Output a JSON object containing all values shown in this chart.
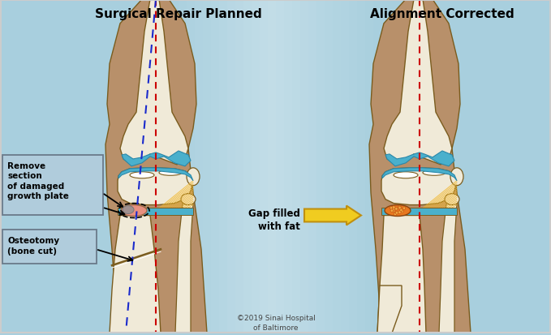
{
  "title_left": "Surgical Repair Planned",
  "title_right": "Alignment Corrected",
  "copyright": "©2019 Sinai Hospital\nof Baltimore",
  "label1_line1": "Remove",
  "label1_line2": "section",
  "label1_line3": "of damaged",
  "label1_line4": "growth plate",
  "label2_line1": "Osteotomy",
  "label2_line2": "(bone cut)",
  "label3": "Gap filled\nwith fat",
  "bg_left": "#a8cfde",
  "bg_right": "#b0d5e2",
  "bg_center": "#d0e8f0",
  "bone_color": "#f0ead8",
  "bone_outline": "#7a5c1e",
  "skin_color": "#b8906a",
  "skin_outline": "#7a5c1e",
  "cartilage_color": "#4ab0cc",
  "cartilage_outline": "#2a88aa",
  "damaged_pink": "#e89080",
  "damaged_gray": "#a09090",
  "fat_orange": "#e87820",
  "fat_light": "#f0a840",
  "tendon_color": "#f0b830",
  "label_bg": "#b0ccdc",
  "label_border": "#6a7a8a",
  "red_dashed": "#cc0000",
  "blue_dashed": "#1a2acc",
  "arrow_yellow": "#f0cc20",
  "arrow_outline": "#c09010",
  "white": "#ffffff",
  "black": "#000000",
  "border_color": "#cccccc"
}
